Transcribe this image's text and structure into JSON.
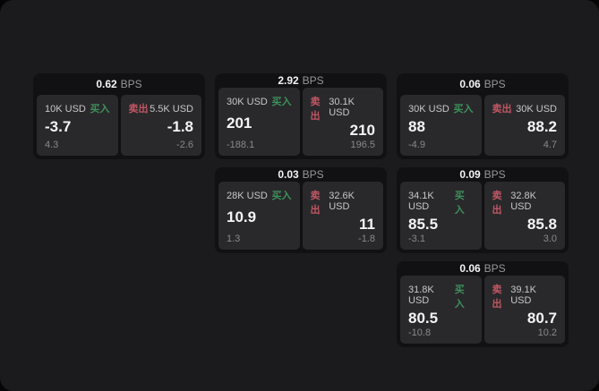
{
  "colors": {
    "bg": "#050506",
    "panel": "#1b1b1d",
    "card": "#111113",
    "tile": "#29292b",
    "buy": "#3f8f5c",
    "sell": "#c25663"
  },
  "bps_unit_label": "BPS",
  "buy_label": "买入",
  "sell_label": "卖出",
  "cards": [
    {
      "col": 1,
      "row": 1,
      "bps": "0.62",
      "bps_unit": "BPS",
      "buy": {
        "amount": "10K USD",
        "side": "买入",
        "price": "-3.7",
        "delta": "4.3"
      },
      "sell": {
        "amount": "5.5K USD",
        "side": "卖出",
        "price": "-1.8",
        "delta": "-2.6"
      }
    },
    {
      "col": 2,
      "row": 1,
      "bps": "2.92",
      "bps_unit": "BPS",
      "buy": {
        "amount": "30K USD",
        "side": "买入",
        "price": "201",
        "delta": "-188.1"
      },
      "sell": {
        "amount": "30.1K USD",
        "side": "卖出",
        "price": "210",
        "delta": "196.5"
      }
    },
    {
      "col": 3,
      "row": 1,
      "bps": "0.06",
      "bps_unit": "BPS",
      "buy": {
        "amount": "30K USD",
        "side": "买入",
        "price": "88",
        "delta": "-4.9"
      },
      "sell": {
        "amount": "30K USD",
        "side": "卖出",
        "price": "88.2",
        "delta": "4.7"
      }
    },
    {
      "col": 2,
      "row": 2,
      "bps": "0.03",
      "bps_unit": "BPS",
      "buy": {
        "amount": "28K USD",
        "side": "买入",
        "price": "10.9",
        "delta": "1.3"
      },
      "sell": {
        "amount": "32.6K USD",
        "side": "卖出",
        "price": "11",
        "delta": "-1.8"
      }
    },
    {
      "col": 3,
      "row": 2,
      "bps": "0.09",
      "bps_unit": "BPS",
      "buy": {
        "amount": "34.1K USD",
        "side": "买入",
        "price": "85.5",
        "delta": "-3.1"
      },
      "sell": {
        "amount": "32.8K USD",
        "side": "卖出",
        "price": "85.8",
        "delta": "3.0"
      }
    },
    {
      "col": 3,
      "row": 3,
      "bps": "0.06",
      "bps_unit": "BPS",
      "buy": {
        "amount": "31.8K USD",
        "side": "买入",
        "price": "80.5",
        "delta": "-10.8"
      },
      "sell": {
        "amount": "39.1K USD",
        "side": "卖出",
        "price": "80.7",
        "delta": "10.2"
      }
    }
  ]
}
